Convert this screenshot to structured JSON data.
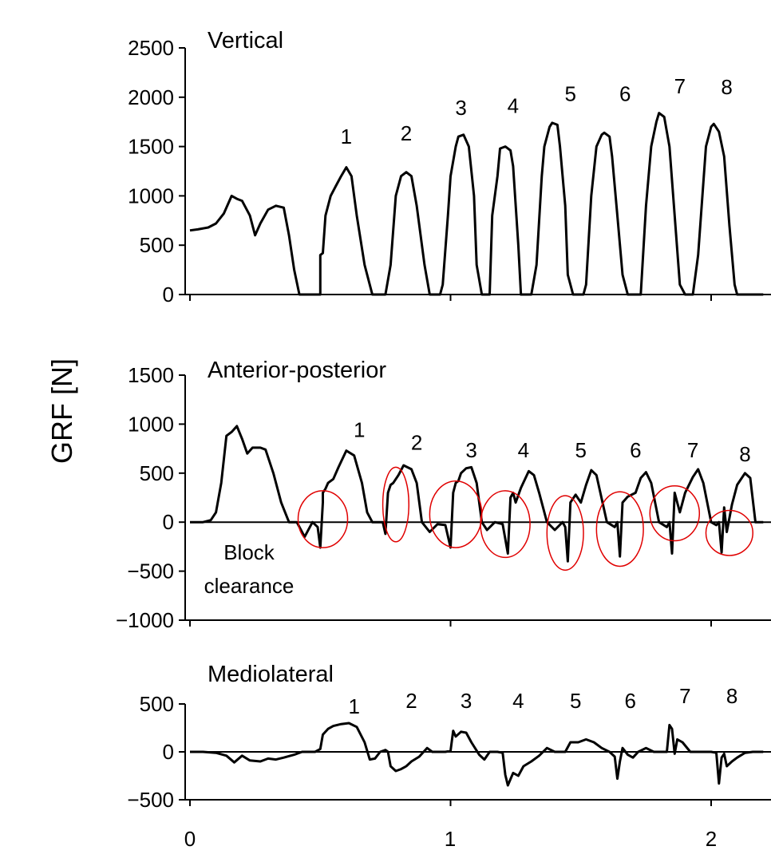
{
  "ylabel": "GRF [N]",
  "x_ticks": [
    "0",
    "1",
    "2"
  ],
  "chart_data": [
    {
      "type": "line",
      "title": "Vertical",
      "xlim": [
        0,
        2.2
      ],
      "ylim": [
        0,
        2500
      ],
      "y_ticks": [
        "0",
        "500",
        "1000",
        "1500",
        "2000",
        "2500"
      ],
      "step_labels": [
        {
          "text": "1",
          "x": 0.6,
          "y": 1530
        },
        {
          "text": "2",
          "x": 0.83,
          "y": 1560
        },
        {
          "text": "3",
          "x": 1.04,
          "y": 1820
        },
        {
          "text": "4",
          "x": 1.24,
          "y": 1840
        },
        {
          "text": "5",
          "x": 1.46,
          "y": 1960
        },
        {
          "text": "6",
          "x": 1.67,
          "y": 1960
        },
        {
          "text": "7",
          "x": 1.88,
          "y": 2040
        },
        {
          "text": "8",
          "x": 2.06,
          "y": 2030
        }
      ],
      "x": [
        0,
        0.03,
        0.07,
        0.1,
        0.13,
        0.16,
        0.18,
        0.2,
        0.23,
        0.25,
        0.27,
        0.3,
        0.33,
        0.36,
        0.38,
        0.4,
        0.42,
        0.45,
        0.48,
        0.5,
        0.5,
        0.51,
        0.52,
        0.54,
        0.56,
        0.58,
        0.6,
        0.62,
        0.64,
        0.67,
        0.7,
        0.73,
        0.75,
        0.77,
        0.79,
        0.81,
        0.83,
        0.85,
        0.87,
        0.9,
        0.92,
        0.93,
        0.95,
        0.96,
        0.97,
        0.99,
        1.0,
        1.02,
        1.03,
        1.05,
        1.07,
        1.09,
        1.1,
        1.12,
        1.13,
        1.15,
        1.16,
        1.18,
        1.19,
        1.21,
        1.23,
        1.24,
        1.26,
        1.27,
        1.28,
        1.3,
        1.31,
        1.33,
        1.35,
        1.36,
        1.38,
        1.39,
        1.41,
        1.42,
        1.44,
        1.45,
        1.47,
        1.49,
        1.51,
        1.52,
        1.54,
        1.56,
        1.58,
        1.59,
        1.61,
        1.62,
        1.64,
        1.66,
        1.68,
        1.69,
        1.71,
        1.73,
        1.75,
        1.77,
        1.79,
        1.8,
        1.82,
        1.84,
        1.86,
        1.88,
        1.9,
        1.91,
        1.93,
        1.95,
        1.98,
        2.0,
        2.01,
        2.03,
        2.05,
        2.07,
        2.09,
        2.1,
        2.13,
        2.15,
        2.17,
        2.2
      ],
      "y": [
        650,
        660,
        680,
        720,
        820,
        1000,
        970,
        950,
        800,
        600,
        720,
        860,
        900,
        880,
        600,
        250,
        0,
        0,
        0,
        0,
        400,
        420,
        800,
        1000,
        1100,
        1200,
        1290,
        1200,
        800,
        300,
        0,
        0,
        0,
        300,
        1000,
        1200,
        1240,
        1200,
        900,
        300,
        0,
        0,
        0,
        0,
        100,
        800,
        1200,
        1500,
        1600,
        1620,
        1500,
        1000,
        300,
        0,
        0,
        0,
        800,
        1200,
        1480,
        1500,
        1460,
        1300,
        500,
        0,
        0,
        0,
        0,
        300,
        1200,
        1500,
        1700,
        1740,
        1720,
        1500,
        900,
        200,
        0,
        0,
        0,
        100,
        1000,
        1500,
        1620,
        1640,
        1600,
        1400,
        800,
        200,
        0,
        0,
        0,
        0,
        900,
        1500,
        1750,
        1840,
        1800,
        1500,
        800,
        100,
        0,
        0,
        0,
        400,
        1500,
        1700,
        1730,
        1650,
        1400,
        700,
        100,
        0,
        0,
        0,
        0,
        0
      ]
    },
    {
      "type": "line",
      "title": "Anterior-posterior",
      "xlim": [
        0,
        2.2
      ],
      "ylim": [
        -1000,
        1500
      ],
      "y_ticks": [
        "−1000",
        "−500",
        "0",
        "500",
        "1000",
        "1500"
      ],
      "step_labels": [
        {
          "text": "1",
          "x": 0.65,
          "y": 870
        },
        {
          "text": "2",
          "x": 0.87,
          "y": 740
        },
        {
          "text": "3",
          "x": 1.08,
          "y": 660
        },
        {
          "text": "4",
          "x": 1.28,
          "y": 660
        },
        {
          "text": "5",
          "x": 1.5,
          "y": 660
        },
        {
          "text": "6",
          "x": 1.71,
          "y": 660
        },
        {
          "text": "7",
          "x": 1.93,
          "y": 660
        },
        {
          "text": "8",
          "x": 2.13,
          "y": 620
        }
      ],
      "annotation": [
        "Block",
        "clearance"
      ],
      "x": [
        0,
        0.05,
        0.08,
        0.1,
        0.12,
        0.14,
        0.16,
        0.18,
        0.2,
        0.22,
        0.24,
        0.27,
        0.29,
        0.32,
        0.35,
        0.38,
        0.41,
        0.44,
        0.47,
        0.49,
        0.5,
        0.51,
        0.51,
        0.52,
        0.53,
        0.55,
        0.57,
        0.6,
        0.63,
        0.66,
        0.68,
        0.7,
        0.72,
        0.74,
        0.75,
        0.76,
        0.77,
        0.78,
        0.8,
        0.82,
        0.85,
        0.87,
        0.89,
        0.92,
        0.95,
        0.98,
        1.0,
        1.01,
        1.02,
        1.03,
        1.04,
        1.06,
        1.08,
        1.1,
        1.12,
        1.14,
        1.17,
        1.2,
        1.22,
        1.23,
        1.24,
        1.25,
        1.27,
        1.3,
        1.32,
        1.34,
        1.37,
        1.4,
        1.43,
        1.44,
        1.45,
        1.46,
        1.48,
        1.5,
        1.52,
        1.54,
        1.56,
        1.6,
        1.63,
        1.64,
        1.65,
        1.66,
        1.68,
        1.71,
        1.73,
        1.75,
        1.77,
        1.8,
        1.83,
        1.84,
        1.85,
        1.86,
        1.88,
        1.9,
        1.93,
        1.95,
        1.97,
        2.0,
        2.02,
        2.03,
        2.04,
        2.05,
        2.06,
        2.08,
        2.1,
        2.13,
        2.15,
        2.17,
        2.2
      ],
      "y": [
        0,
        0,
        20,
        100,
        400,
        880,
        920,
        980,
        850,
        700,
        760,
        760,
        740,
        500,
        200,
        0,
        0,
        -150,
        0,
        -50,
        -260,
        200,
        300,
        340,
        400,
        440,
        560,
        730,
        680,
        400,
        100,
        0,
        0,
        0,
        -120,
        300,
        380,
        400,
        480,
        580,
        540,
        400,
        0,
        -100,
        -20,
        -30,
        -260,
        300,
        400,
        420,
        500,
        550,
        560,
        400,
        0,
        -80,
        0,
        -20,
        -320,
        250,
        300,
        200,
        350,
        520,
        480,
        300,
        0,
        -80,
        0,
        -50,
        -400,
        200,
        280,
        200,
        380,
        530,
        480,
        0,
        -50,
        0,
        -350,
        200,
        260,
        300,
        450,
        510,
        400,
        0,
        -50,
        0,
        -320,
        300,
        100,
        300,
        460,
        540,
        400,
        0,
        -30,
        0,
        -310,
        150,
        -100,
        180,
        380,
        500,
        450,
        0,
        0
      ]
    },
    {
      "type": "line",
      "title": "Mediolateral",
      "xlim": [
        0,
        2.2
      ],
      "ylim": [
        -500,
        500
      ],
      "y_ticks": [
        "−500",
        "0",
        "500"
      ],
      "step_labels": [
        {
          "text": "1",
          "x": 0.63,
          "y": 400
        },
        {
          "text": "2",
          "x": 0.85,
          "y": 460
        },
        {
          "text": "3",
          "x": 1.06,
          "y": 460
        },
        {
          "text": "4",
          "x": 1.26,
          "y": 460
        },
        {
          "text": "5",
          "x": 1.48,
          "y": 460
        },
        {
          "text": "6",
          "x": 1.69,
          "y": 460
        },
        {
          "text": "7",
          "x": 1.9,
          "y": 510
        },
        {
          "text": "8",
          "x": 2.08,
          "y": 510
        }
      ],
      "x": [
        0,
        0.05,
        0.1,
        0.14,
        0.17,
        0.2,
        0.23,
        0.27,
        0.3,
        0.33,
        0.36,
        0.4,
        0.43,
        0.45,
        0.48,
        0.5,
        0.51,
        0.53,
        0.55,
        0.58,
        0.61,
        0.64,
        0.67,
        0.69,
        0.71,
        0.73,
        0.75,
        0.76,
        0.77,
        0.79,
        0.81,
        0.83,
        0.85,
        0.88,
        0.91,
        0.93,
        0.95,
        0.98,
        1.0,
        1.01,
        1.02,
        1.04,
        1.06,
        1.08,
        1.11,
        1.13,
        1.15,
        1.18,
        1.2,
        1.21,
        1.22,
        1.24,
        1.26,
        1.28,
        1.31,
        1.34,
        1.37,
        1.4,
        1.43,
        1.44,
        1.46,
        1.49,
        1.52,
        1.55,
        1.58,
        1.61,
        1.63,
        1.64,
        1.65,
        1.66,
        1.68,
        1.7,
        1.72,
        1.75,
        1.78,
        1.8,
        1.82,
        1.83,
        1.84,
        1.85,
        1.86,
        1.87,
        1.89,
        1.92,
        1.95,
        1.98,
        2.0,
        2.02,
        2.03,
        2.04,
        2.05,
        2.06,
        2.08,
        2.1,
        2.13,
        2.16,
        2.2
      ],
      "y": [
        0,
        0,
        -10,
        -40,
        -110,
        -40,
        -90,
        -100,
        -70,
        -80,
        -60,
        -30,
        0,
        0,
        0,
        30,
        180,
        240,
        270,
        290,
        300,
        260,
        100,
        -80,
        -70,
        0,
        20,
        0,
        -150,
        -200,
        -180,
        -150,
        -100,
        -50,
        40,
        0,
        0,
        0,
        10,
        220,
        160,
        210,
        200,
        100,
        -30,
        -80,
        0,
        0,
        -10,
        -240,
        -350,
        -220,
        -250,
        -150,
        -100,
        -40,
        40,
        0,
        0,
        0,
        100,
        100,
        130,
        100,
        40,
        0,
        -50,
        -280,
        -100,
        40,
        -30,
        -60,
        0,
        40,
        0,
        0,
        0,
        0,
        280,
        240,
        -20,
        130,
        100,
        0,
        0,
        0,
        0,
        -10,
        -330,
        -60,
        -20,
        -150,
        -100,
        -60,
        -10,
        0,
        0
      ]
    }
  ],
  "markers": [
    {
      "cx": 0.51,
      "cy": 30,
      "rx": 0.095,
      "ry": 290
    },
    {
      "cx": 0.79,
      "cy": 180,
      "rx": 0.05,
      "ry": 380
    },
    {
      "cx": 1.02,
      "cy": 80,
      "rx": 0.1,
      "ry": 340
    },
    {
      "cx": 1.21,
      "cy": -20,
      "rx": 0.095,
      "ry": 340
    },
    {
      "cx": 1.44,
      "cy": -110,
      "rx": 0.07,
      "ry": 380
    },
    {
      "cx": 1.65,
      "cy": -70,
      "rx": 0.09,
      "ry": 380
    },
    {
      "cx": 1.86,
      "cy": 90,
      "rx": 0.095,
      "ry": 280
    },
    {
      "cx": 2.07,
      "cy": -110,
      "rx": 0.09,
      "ry": 230
    }
  ]
}
